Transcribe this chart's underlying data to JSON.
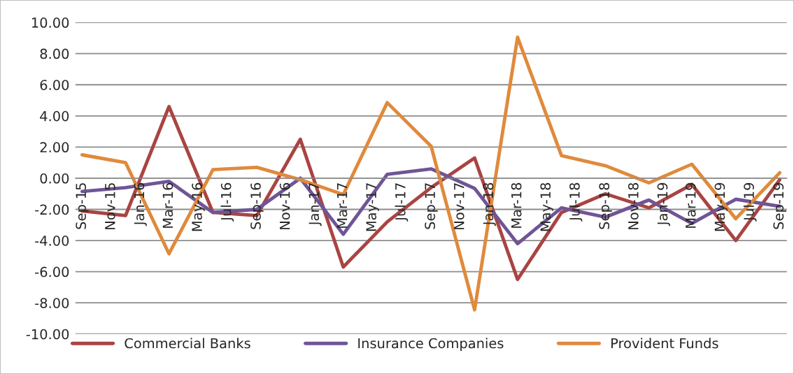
{
  "chart_data": {
    "type": "line",
    "x": [
      "2015-09",
      "2015-12",
      "2016-03",
      "2016-06",
      "2016-09",
      "2016-12",
      "2017-03",
      "2017-06",
      "2017-09",
      "2017-12",
      "2018-03",
      "2018-06",
      "2018-09",
      "2018-12",
      "2019-03",
      "2019-06",
      "2019-09"
    ],
    "series": [
      {
        "name": "Commercial Banks",
        "color": "#a94442",
        "values": [
          -2.1,
          -2.4,
          4.6,
          -2.2,
          -2.4,
          2.5,
          -5.7,
          -2.8,
          -0.6,
          1.3,
          -6.5,
          -2.2,
          -1.0,
          -1.9,
          -0.4,
          -4.0,
          -0.1
        ]
      },
      {
        "name": "Insurance Companies",
        "color": "#6f5596",
        "values": [
          -0.85,
          -0.6,
          -0.2,
          -2.2,
          -2.0,
          0.0,
          -3.6,
          0.25,
          0.6,
          -0.65,
          -4.2,
          -1.9,
          -2.5,
          -1.4,
          -2.9,
          -1.35,
          -1.8
        ]
      },
      {
        "name": "Provident Funds",
        "color": "#e08a3c",
        "values": [
          1.5,
          1.0,
          -4.85,
          0.55,
          0.7,
          -0.1,
          -1.05,
          4.85,
          2.05,
          -8.45,
          9.05,
          1.45,
          0.8,
          -0.3,
          0.9,
          -2.6,
          0.35
        ]
      }
    ],
    "xlim": [
      "2015-08-18",
      "2019-09-16"
    ],
    "xticks": [
      {
        "value": "2015-09",
        "label": "Sep-15"
      },
      {
        "value": "2015-11",
        "label": "Nov-15"
      },
      {
        "value": "2016-01",
        "label": "Jan-16"
      },
      {
        "value": "2016-03",
        "label": "Mar-16"
      },
      {
        "value": "2016-05",
        "label": "May-16"
      },
      {
        "value": "2016-07",
        "label": "Jul-16"
      },
      {
        "value": "2016-09",
        "label": "Sep-16"
      },
      {
        "value": "2016-11",
        "label": "Nov-16"
      },
      {
        "value": "2017-01",
        "label": "Jan-17"
      },
      {
        "value": "2017-03",
        "label": "Mar-17"
      },
      {
        "value": "2017-05",
        "label": "May-17"
      },
      {
        "value": "2017-07",
        "label": "Jul-17"
      },
      {
        "value": "2017-09",
        "label": "Sep-17"
      },
      {
        "value": "2017-11",
        "label": "Nov-17"
      },
      {
        "value": "2018-01",
        "label": "Jan-18"
      },
      {
        "value": "2018-03",
        "label": "Mar-18"
      },
      {
        "value": "2018-05",
        "label": "May-18"
      },
      {
        "value": "2018-07",
        "label": "Jul-18"
      },
      {
        "value": "2018-09",
        "label": "Sep-18"
      },
      {
        "value": "2018-11",
        "label": "Nov-18"
      },
      {
        "value": "2019-01",
        "label": "Jan-19"
      },
      {
        "value": "2019-03",
        "label": "Mar-19"
      },
      {
        "value": "2019-05",
        "label": "May-19"
      },
      {
        "value": "2019-07",
        "label": "Jul-19"
      },
      {
        "value": "2019-09",
        "label": "Sep-19"
      }
    ],
    "ylim": [
      -10,
      10
    ],
    "yticks": [
      {
        "value": -10,
        "label": "-10.00"
      },
      {
        "value": -8,
        "label": "-8.00"
      },
      {
        "value": -6,
        "label": "-6.00"
      },
      {
        "value": -4,
        "label": "-4.00"
      },
      {
        "value": -2,
        "label": "-2.00"
      },
      {
        "value": 0,
        "label": "0.00"
      },
      {
        "value": 2,
        "label": "2.00"
      },
      {
        "value": 4,
        "label": "4.00"
      },
      {
        "value": 6,
        "label": "6.00"
      },
      {
        "value": 8,
        "label": "8.00"
      },
      {
        "value": 10,
        "label": "10.00"
      }
    ],
    "grid": "y",
    "legend": "bottom"
  }
}
